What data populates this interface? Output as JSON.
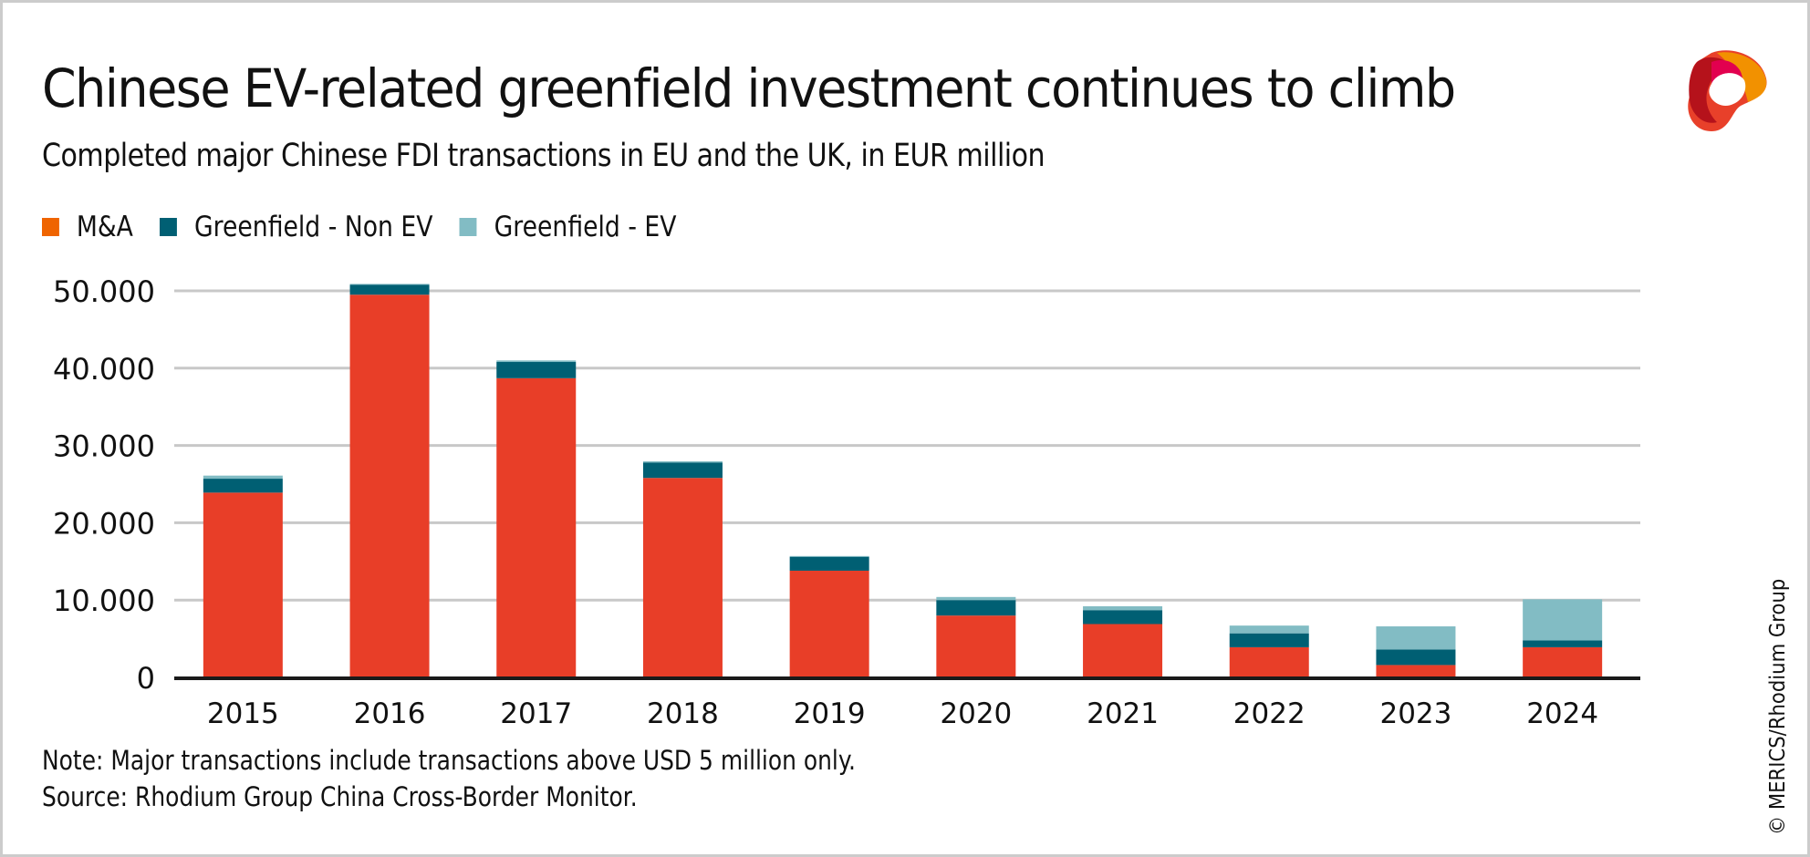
{
  "header": {
    "title": "Chinese EV-related greenfield investment continues to climb",
    "subtitle": "Completed major Chinese FDI transactions in EU and the UK, in EUR million"
  },
  "legend": [
    {
      "label": "M&A",
      "color": "#ef6400"
    },
    {
      "label": "Greenfield - Non EV",
      "color": "#005f73"
    },
    {
      "label": "Greenfield - EV",
      "color": "#82bcc4"
    }
  ],
  "logo": {
    "icon": "merics-logo-icon"
  },
  "footer": {
    "note": "Note: Major transactions include transactions above USD 5 million only.",
    "source": "Source: Rhodium Group China Cross-Border Monitor.",
    "copyright": "© MERICS/Rhodium Group"
  },
  "colors": {
    "ma_bar": "#e83e28",
    "non_ev": "#005f73",
    "ev": "#82bcc4",
    "grid": "#c8c8c8",
    "axis": "#1a1a1a"
  },
  "chart_data": {
    "type": "bar",
    "stacked": true,
    "title": "Chinese EV-related greenfield investment continues to climb",
    "subtitle": "Completed major Chinese FDI transactions in EU and the UK, in EUR million",
    "xlabel": "",
    "ylabel": "EUR million",
    "categories": [
      "2015",
      "2016",
      "2017",
      "2018",
      "2019",
      "2020",
      "2021",
      "2022",
      "2023",
      "2024"
    ],
    "series": [
      {
        "name": "M&A",
        "values": [
          23900,
          49500,
          38700,
          25800,
          13800,
          8000,
          6900,
          3900,
          1600,
          3900
        ]
      },
      {
        "name": "Greenfield - Non EV",
        "values": [
          1800,
          1300,
          2100,
          2000,
          1800,
          2000,
          1800,
          1800,
          2000,
          900
        ]
      },
      {
        "name": "Greenfield - EV",
        "values": [
          400,
          100,
          200,
          150,
          100,
          400,
          500,
          1000,
          3000,
          5300
        ]
      }
    ],
    "ylim": [
      0,
      50000
    ],
    "yticks": [
      0,
      10000,
      20000,
      30000,
      40000,
      50000
    ],
    "ytick_labels": [
      "0",
      "10.000",
      "20.000",
      "30.000",
      "40.000",
      "50.000"
    ],
    "grid": true,
    "legend_position": "top-left"
  }
}
